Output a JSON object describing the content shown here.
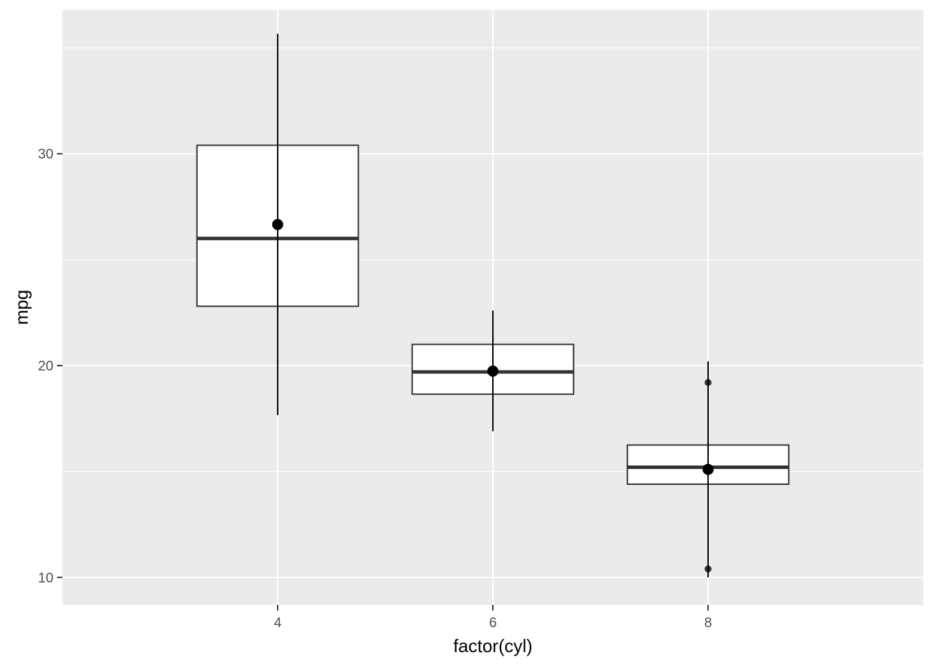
{
  "chart_data": {
    "type": "boxplot",
    "xlabel": "factor(cyl)",
    "ylabel": "mpg",
    "categories": [
      "4",
      "6",
      "8"
    ],
    "ylim": [
      8.7,
      36.8
    ],
    "y_ticks": [
      10,
      20,
      30
    ],
    "grid": true,
    "boxes": [
      {
        "category": "4",
        "q1": 22.8,
        "median": 26.0,
        "q3": 30.4,
        "outliers": []
      },
      {
        "category": "6",
        "q1": 18.65,
        "median": 19.7,
        "q3": 21.0,
        "outliers": []
      },
      {
        "category": "8",
        "q1": 14.4,
        "median": 15.2,
        "q3": 16.25,
        "outliers": [
          10.4,
          19.2
        ]
      }
    ],
    "mean_range": [
      {
        "category": "4",
        "mean": 26.66,
        "ymin": 17.66,
        "ymax": 35.66
      },
      {
        "category": "6",
        "mean": 19.74,
        "ymin": 16.9,
        "ymax": 22.6
      },
      {
        "category": "8",
        "mean": 15.1,
        "ymin": 10.0,
        "ymax": 20.2
      }
    ],
    "colors": {
      "panel_background": "#ebebeb",
      "grid_major": "#ffffff",
      "grid_minor": "#ffffff",
      "box_fill": "#ffffff",
      "box_outline": "#333333",
      "median_line": "#333333",
      "error_bar": "#000000",
      "mean_point": "#000000",
      "outlier_point": "#333333"
    }
  }
}
